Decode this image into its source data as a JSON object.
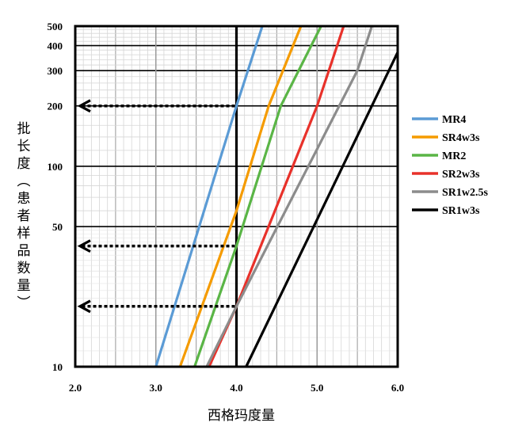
{
  "chart_data": {
    "type": "line",
    "title": "",
    "xlabel": "西格玛度量",
    "ylabel": "批长度（患者样品数量）",
    "y_scale": "log",
    "xlim": [
      2.0,
      6.0
    ],
    "ylim": [
      10,
      500
    ],
    "x_ticks": [
      "2.0",
      "3.0",
      "4.0",
      "5.0",
      "6.0"
    ],
    "y_ticks": [
      "500",
      "400",
      "300",
      "200",
      "100",
      "50",
      "10"
    ],
    "grid": true,
    "legend_position": "right",
    "series": [
      {
        "name": "MR4",
        "color": "#5B9BD5",
        "points": [
          [
            3.0,
            10
          ],
          [
            4.0,
            200
          ],
          [
            4.32,
            500
          ]
        ]
      },
      {
        "name": "SR4w3s",
        "color": "#F59B00",
        "points": [
          [
            3.3,
            10
          ],
          [
            4.0,
            60
          ],
          [
            4.4,
            200
          ],
          [
            4.8,
            500
          ]
        ]
      },
      {
        "name": "MR2",
        "color": "#5AB546",
        "points": [
          [
            3.48,
            10
          ],
          [
            4.0,
            40
          ],
          [
            4.55,
            200
          ],
          [
            5.05,
            500
          ]
        ]
      },
      {
        "name": "SR2w3s",
        "color": "#E8312A",
        "points": [
          [
            3.66,
            10
          ],
          [
            4.0,
            20
          ],
          [
            5.0,
            200
          ],
          [
            5.33,
            500
          ]
        ]
      },
      {
        "name": "SR1w2.5s",
        "color": "#8C8C8C",
        "points": [
          [
            3.63,
            10
          ],
          [
            4.0,
            20
          ],
          [
            5.5,
            300
          ],
          [
            5.68,
            500
          ]
        ]
      },
      {
        "name": "SR1w3s",
        "color": "#000000",
        "points": [
          [
            4.12,
            10
          ],
          [
            6.0,
            370
          ]
        ]
      }
    ],
    "annotations": [
      {
        "type": "dashed-arrow",
        "from_x": 4.0,
        "y": 200
      },
      {
        "type": "dashed-arrow",
        "from_x": 4.0,
        "y": 40
      },
      {
        "type": "dashed-arrow",
        "from_x": 4.0,
        "y": 20
      }
    ]
  }
}
